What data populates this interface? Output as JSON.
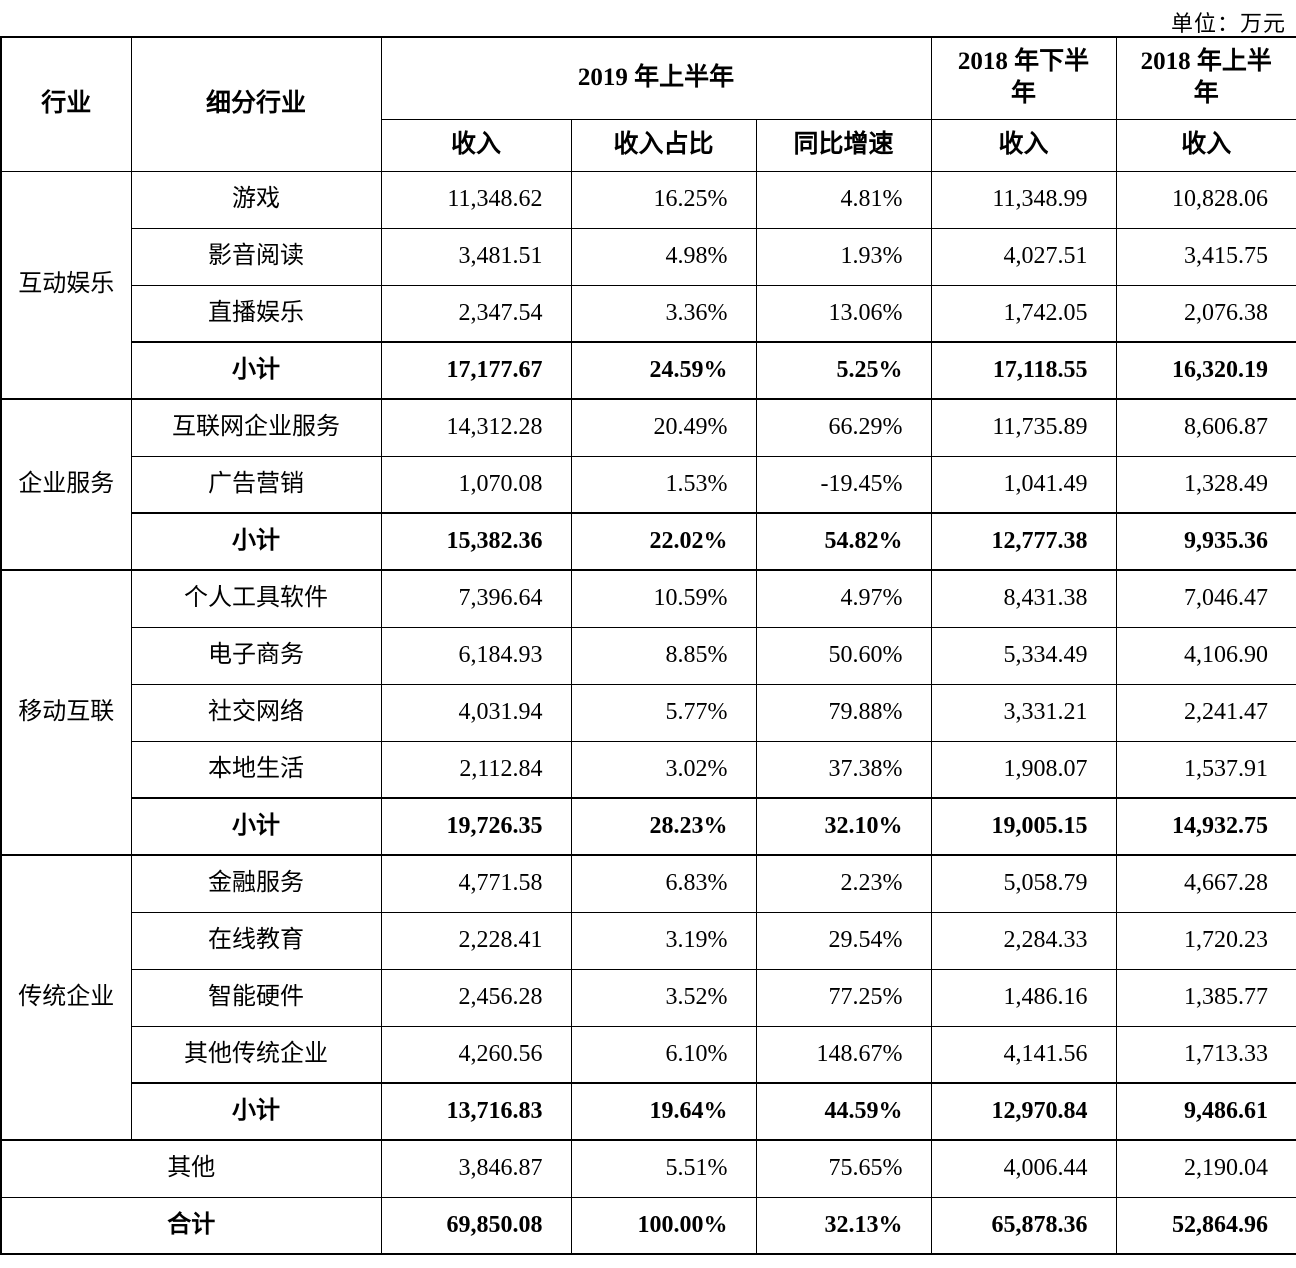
{
  "unit_label": "单位：万元",
  "header": {
    "industry": "行业",
    "sub_industry": "细分行业",
    "period_2019h1": "2019 年上半年",
    "period_2018h2": "2018 年下半年",
    "period_2018h1": "2018 年上半年",
    "income": "收入",
    "income_share": "收入占比",
    "yoy_growth": "同比增速"
  },
  "groups": [
    {
      "industry": "互动娱乐",
      "rows": [
        {
          "label": "游戏",
          "bold": false,
          "values": [
            "11,348.62",
            "16.25%",
            "4.81%",
            "11,348.99",
            "10,828.06"
          ]
        },
        {
          "label": "影音阅读",
          "bold": false,
          "values": [
            "3,481.51",
            "4.98%",
            "1.93%",
            "4,027.51",
            "3,415.75"
          ]
        },
        {
          "label": "直播娱乐",
          "bold": false,
          "values": [
            "2,347.54",
            "3.36%",
            "13.06%",
            "1,742.05",
            "2,076.38"
          ]
        },
        {
          "label": "小计",
          "bold": true,
          "values": [
            "17,177.67",
            "24.59%",
            "5.25%",
            "17,118.55",
            "16,320.19"
          ]
        }
      ]
    },
    {
      "industry": "企业服务",
      "rows": [
        {
          "label": "互联网企业服务",
          "bold": false,
          "values": [
            "14,312.28",
            "20.49%",
            "66.29%",
            "11,735.89",
            "8,606.87"
          ]
        },
        {
          "label": "广告营销",
          "bold": false,
          "values": [
            "1,070.08",
            "1.53%",
            "-19.45%",
            "1,041.49",
            "1,328.49"
          ]
        },
        {
          "label": "小计",
          "bold": true,
          "values": [
            "15,382.36",
            "22.02%",
            "54.82%",
            "12,777.38",
            "9,935.36"
          ]
        }
      ]
    },
    {
      "industry": "移动互联",
      "rows": [
        {
          "label": "个人工具软件",
          "bold": false,
          "values": [
            "7,396.64",
            "10.59%",
            "4.97%",
            "8,431.38",
            "7,046.47"
          ]
        },
        {
          "label": "电子商务",
          "bold": false,
          "values": [
            "6,184.93",
            "8.85%",
            "50.60%",
            "5,334.49",
            "4,106.90"
          ]
        },
        {
          "label": "社交网络",
          "bold": false,
          "values": [
            "4,031.94",
            "5.77%",
            "79.88%",
            "3,331.21",
            "2,241.47"
          ]
        },
        {
          "label": "本地生活",
          "bold": false,
          "values": [
            "2,112.84",
            "3.02%",
            "37.38%",
            "1,908.07",
            "1,537.91"
          ]
        },
        {
          "label": "小计",
          "bold": true,
          "values": [
            "19,726.35",
            "28.23%",
            "32.10%",
            "19,005.15",
            "14,932.75"
          ]
        }
      ]
    },
    {
      "industry": "传统企业",
      "rows": [
        {
          "label": "金融服务",
          "bold": false,
          "values": [
            "4,771.58",
            "6.83%",
            "2.23%",
            "5,058.79",
            "4,667.28"
          ]
        },
        {
          "label": "在线教育",
          "bold": false,
          "values": [
            "2,228.41",
            "3.19%",
            "29.54%",
            "2,284.33",
            "1,720.23"
          ]
        },
        {
          "label": "智能硬件",
          "bold": false,
          "values": [
            "2,456.28",
            "3.52%",
            "77.25%",
            "1,486.16",
            "1,385.77"
          ]
        },
        {
          "label": "其他传统企业",
          "bold": false,
          "values": [
            "4,260.56",
            "6.10%",
            "148.67%",
            "4,141.56",
            "1,713.33"
          ]
        },
        {
          "label": "小计",
          "bold": true,
          "values": [
            "13,716.83",
            "19.64%",
            "44.59%",
            "12,970.84",
            "9,486.61"
          ]
        }
      ]
    }
  ],
  "summary_rows": [
    {
      "label": "其他",
      "bold": false,
      "values": [
        "3,846.87",
        "5.51%",
        "75.65%",
        "4,006.44",
        "2,190.04"
      ]
    },
    {
      "label": "合计",
      "bold": true,
      "values": [
        "69,850.08",
        "100.00%",
        "32.13%",
        "65,878.36",
        "52,864.96"
      ]
    }
  ]
}
